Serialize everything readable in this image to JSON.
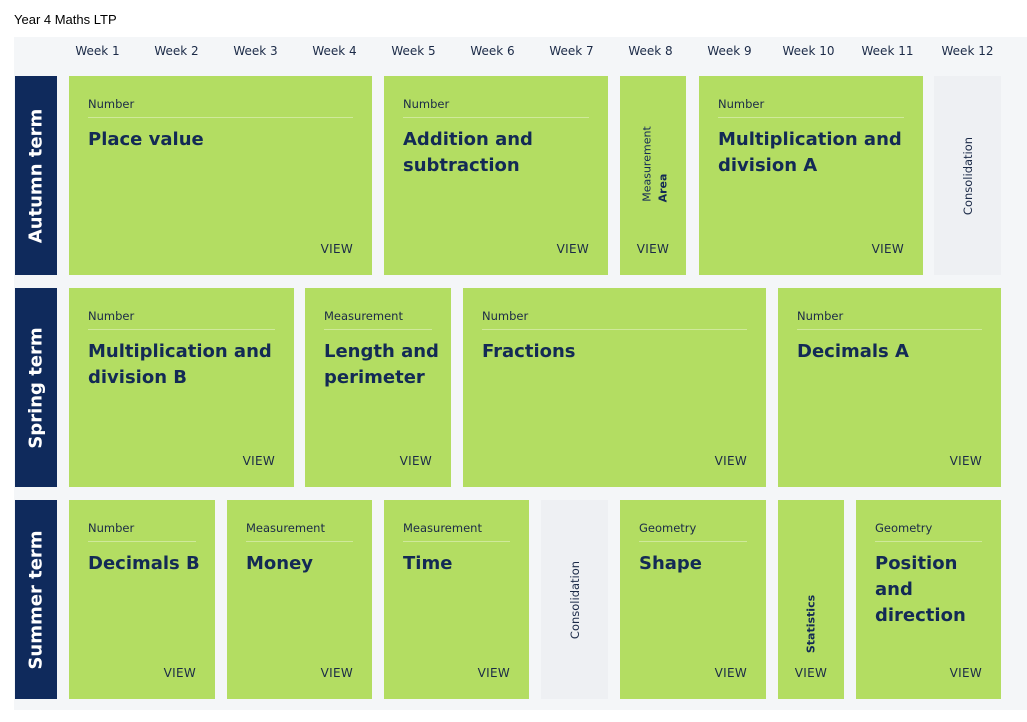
{
  "page_title": "Year 4 Maths LTP",
  "weeks": [
    "Week 1",
    "Week 2",
    "Week 3",
    "Week 4",
    "Week 5",
    "Week 6",
    "Week 7",
    "Week 8",
    "Week 9",
    "Week 10",
    "Week 11",
    "Week 12"
  ],
  "terms": {
    "autumn": "Autumn term",
    "spring": "Spring term",
    "summer": "Summer term"
  },
  "view_label": "VIEW",
  "consolidation_label": "Consolidation",
  "autumn": {
    "place_value": {
      "category": "Number",
      "title": "Place value"
    },
    "addition_subtraction": {
      "category": "Number",
      "title": "Addition and subtraction"
    },
    "area": {
      "category": "Measurement",
      "title": "Area"
    },
    "multiplication_a": {
      "category": "Number",
      "title": "Multiplication and division A"
    }
  },
  "spring": {
    "multiplication_b": {
      "category": "Number",
      "title": "Multiplication and division B"
    },
    "length_perimeter": {
      "category": "Measurement",
      "title": "Length and perimeter"
    },
    "fractions": {
      "category": "Number",
      "title": "Fractions"
    },
    "decimals_a": {
      "category": "Number",
      "title": "Decimals A"
    }
  },
  "summer": {
    "decimals_b": {
      "category": "Number",
      "title": "Decimals B"
    },
    "money": {
      "category": "Measurement",
      "title": "Money"
    },
    "time": {
      "category": "Measurement",
      "title": "Time"
    },
    "shape": {
      "category": "Geometry",
      "title": "Shape"
    },
    "statistics": {
      "title": "Statistics"
    },
    "position_direction": {
      "category": "Geometry",
      "title": "Position and direction"
    }
  },
  "colors": {
    "card_green": "#b3dd62",
    "term_navy": "#0f2a5c",
    "consolidation_grey": "#eef0f3"
  }
}
